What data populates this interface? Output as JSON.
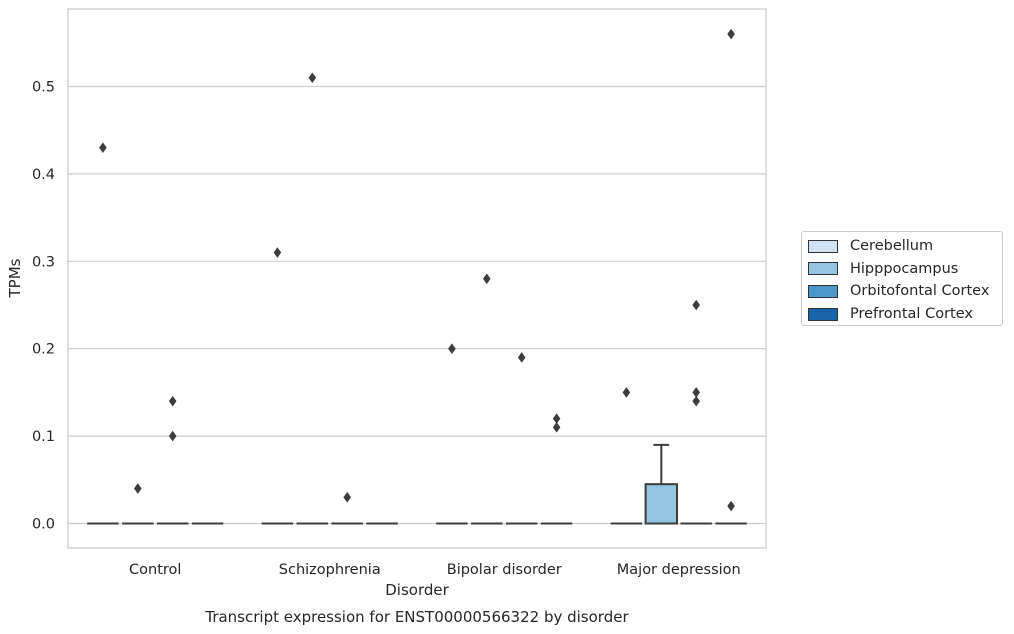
{
  "chart_data": {
    "type": "box",
    "title": "Transcript expression for ENST00000566322 by disorder",
    "xlabel": "Disorder",
    "ylabel": "TPMs",
    "categories": [
      "Control",
      "Schizophrenia",
      "Bipolar disorder",
      "Major depression"
    ],
    "ylim": [
      -0.028,
      0.585
    ],
    "yticks": [
      0.0,
      0.1,
      0.2,
      0.3,
      0.4,
      0.5
    ],
    "ytick_labels": [
      "0.0",
      "0.1",
      "0.2",
      "0.3",
      "0.4",
      "0.5"
    ],
    "grid": "horizontal",
    "legend_position": "right",
    "series": [
      {
        "name": "Cerebellum",
        "color": "#d0e1f2",
        "boxes": [
          {
            "min": 0,
            "q1": 0,
            "median": 0,
            "q3": 0,
            "max": 0,
            "outliers": [
              0.43
            ]
          },
          {
            "min": 0,
            "q1": 0,
            "median": 0,
            "q3": 0,
            "max": 0,
            "outliers": [
              0.31
            ]
          },
          {
            "min": 0,
            "q1": 0,
            "median": 0,
            "q3": 0,
            "max": 0,
            "outliers": [
              0.2
            ]
          },
          {
            "min": 0,
            "q1": 0,
            "median": 0,
            "q3": 0,
            "max": 0,
            "outliers": [
              0.15
            ]
          }
        ]
      },
      {
        "name": "Hipppocampus",
        "color": "#94c4df",
        "boxes": [
          {
            "min": 0,
            "q1": 0,
            "median": 0,
            "q3": 0,
            "max": 0,
            "outliers": [
              0.04
            ]
          },
          {
            "min": 0,
            "q1": 0,
            "median": 0,
            "q3": 0,
            "max": 0,
            "outliers": [
              0.51
            ]
          },
          {
            "min": 0,
            "q1": 0,
            "median": 0,
            "q3": 0,
            "max": 0,
            "outliers": [
              0.28
            ]
          },
          {
            "min": 0,
            "q1": 0,
            "median": 0,
            "q3": 0.045,
            "max": 0.09,
            "outliers": []
          }
        ]
      },
      {
        "name": "Orbitofontal Cortex",
        "color": "#4a98c9",
        "boxes": [
          {
            "min": 0,
            "q1": 0,
            "median": 0,
            "q3": 0,
            "max": 0,
            "outliers": [
              0.14,
              0.1
            ]
          },
          {
            "min": 0,
            "q1": 0,
            "median": 0,
            "q3": 0,
            "max": 0,
            "outliers": [
              0.03
            ]
          },
          {
            "min": 0,
            "q1": 0,
            "median": 0,
            "q3": 0,
            "max": 0,
            "outliers": [
              0.19
            ]
          },
          {
            "min": 0,
            "q1": 0,
            "median": 0,
            "q3": 0,
            "max": 0,
            "outliers": [
              0.25,
              0.15,
              0.14
            ]
          }
        ]
      },
      {
        "name": "Prefrontal Cortex",
        "color": "#1764ab",
        "boxes": [
          {
            "min": 0,
            "q1": 0,
            "median": 0,
            "q3": 0,
            "max": 0,
            "outliers": []
          },
          {
            "min": 0,
            "q1": 0,
            "median": 0,
            "q3": 0,
            "max": 0,
            "outliers": []
          },
          {
            "min": 0,
            "q1": 0,
            "median": 0,
            "q3": 0,
            "max": 0,
            "outliers": [
              0.12,
              0.11
            ]
          },
          {
            "min": 0,
            "q1": 0,
            "median": 0,
            "q3": 0,
            "max": 0,
            "outliers": [
              0.56,
              0.02
            ]
          }
        ]
      }
    ]
  }
}
